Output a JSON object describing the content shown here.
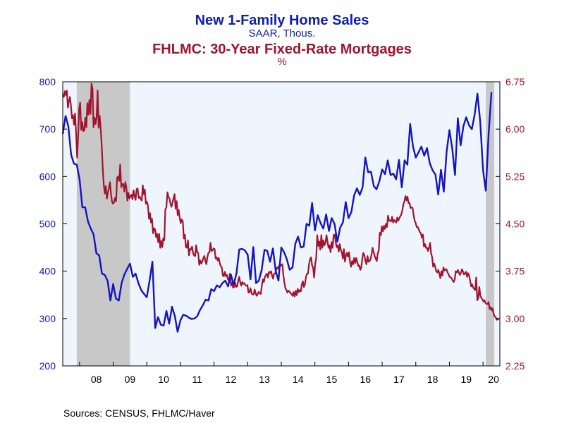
{
  "source": "Sources:  CENSUS, FHLMC/Haver",
  "colors": {
    "home_sales": "#1414c0",
    "mortgage": "#a3132e",
    "plot_bg": "#eef5fd",
    "recession": "#c8c8c8"
  },
  "chart_data": {
    "type": "line",
    "title": "New 1-Family Home Sales",
    "subtitle": "SAAR, Thous.",
    "title2": "FHLMC: 30-Year Fixed-Rate Mortgages",
    "subtitle2": "%",
    "x_tick_labels": [
      "08",
      "09",
      "10",
      "11",
      "12",
      "13",
      "14",
      "15",
      "16",
      "17",
      "18",
      "19",
      "20"
    ],
    "x_range": [
      "2007-07",
      "2020-07"
    ],
    "left_axis": {
      "range": [
        200,
        800
      ],
      "ticks": [
        200,
        300,
        400,
        500,
        600,
        700,
        800
      ],
      "tick_labels": [
        "200",
        "300",
        "400",
        "500",
        "600",
        "700",
        "800"
      ]
    },
    "right_axis": {
      "range": [
        2.25,
        6.75
      ],
      "ticks": [
        2.25,
        3.0,
        3.75,
        4.5,
        5.25,
        6.0,
        6.75
      ],
      "tick_labels": [
        "2.25",
        "3.00",
        "3.75",
        "4.50",
        "5.25",
        "6.00",
        "6.75"
      ]
    },
    "recessions": [
      {
        "start": "2007-12",
        "end": "2009-06"
      },
      {
        "start": "2020-02",
        "end": "2020-04"
      }
    ],
    "grid": false,
    "series": [
      {
        "name": "New 1-Family Home Sales",
        "axis": "left",
        "frequency": "monthly",
        "start": "2007-07",
        "values": [
          690,
          728,
          706,
          646,
          627,
          625,
          595,
          535,
          535,
          505,
          490,
          478,
          438,
          433,
          395,
          392,
          380,
          338,
          373,
          342,
          338,
          375,
          393,
          405,
          416,
          388,
          395,
          375,
          360,
          352,
          345,
          380,
          420,
          280,
          303,
          287,
          285,
          316,
          289,
          325,
          305,
          272,
          296,
          308,
          306,
          302,
          299,
          300,
          305,
          318,
          328,
          340,
          338,
          362,
          358,
          370,
          366,
          375,
          380,
          368,
          393,
          372,
          395,
          446,
          447,
          444,
          435,
          383,
          451,
          375,
          380,
          403,
          445,
          443,
          420,
          448,
          400,
          380,
          450,
          440,
          425,
          403,
          408,
          458,
          473,
          450,
          452,
          500,
          496,
          544,
          486,
          518,
          502,
          490,
          520,
          485,
          512,
          500,
          462,
          492,
          503,
          546,
          512,
          525,
          560,
          575,
          561,
          577,
          640,
          609,
          610,
          580,
          573,
          590,
          615,
          605,
          634,
          603,
          606,
          594,
          635,
          577,
          634,
          625,
          711,
          663,
          640,
          651,
          663,
          644,
          660,
          628,
          613,
          604,
          562,
          614,
          568,
          652,
          698,
          660,
          603,
          723,
          666,
          706,
          725,
          708,
          700,
          730,
          775,
          715,
          613,
          570,
          690,
          778
        ]
      },
      {
        "name": "FHLMC: 30-Year Fixed-Rate Mortgages",
        "axis": "right",
        "frequency": "weekly",
        "start": "2007-07",
        "values": [
          6.55,
          6.51,
          6.6,
          6.54,
          6.61,
          6.34,
          6.44,
          6.51,
          6.37,
          6.17,
          6.22,
          6.07,
          6.25,
          5.94,
          5.55,
          5.86,
          6.33,
          6.42,
          5.99,
          6.11,
          5.97,
          5.98,
          6.18,
          6.03,
          6.41,
          6.23,
          6.46,
          6.24,
          6.72,
          6.64,
          6.03,
          6.18,
          6.08,
          6.19,
          6.61,
          6.02,
          6.21,
          6.0,
          5.73,
          5.37,
          5.12,
          4.98,
          5.1,
          4.9,
          4.99,
          5.07,
          5.16,
          4.98,
          4.85,
          4.82,
          4.84,
          4.91,
          4.86,
          5.23,
          5.25,
          5.18,
          5.44,
          5.08,
          5.13,
          5.13,
          5.01,
          5.16,
          5.08,
          4.87,
          4.99,
          4.9,
          4.94,
          4.96,
          4.89,
          5.03,
          4.94,
          4.88,
          5.05,
          5.06,
          4.91,
          4.93,
          4.89,
          4.87,
          5.11,
          4.97,
          5.04,
          4.82,
          4.85,
          4.79,
          4.58,
          4.67,
          4.52,
          4.58,
          4.35,
          4.43,
          4.41,
          4.29,
          4.34,
          4.21,
          4.34,
          4.12,
          4.23,
          4.13,
          4.27,
          4.24,
          4.73,
          4.76,
          5.0,
          4.93,
          4.9,
          4.82,
          4.77,
          4.84,
          4.91,
          4.97,
          4.74,
          4.86,
          4.64,
          4.72,
          4.59,
          4.51,
          4.57,
          4.54,
          4.27,
          4.33,
          4.13,
          4.12,
          4.24,
          4.0,
          4.1,
          4.09,
          4.14,
          4.04,
          4.0,
          3.99,
          4.16,
          4.05,
          4.04,
          3.85,
          3.92,
          3.87,
          3.9,
          3.96,
          3.99,
          3.91,
          3.86,
          3.98,
          4.04,
          4.05,
          4.2,
          4.07,
          4.08,
          4.11,
          4.1,
          3.95,
          3.97,
          3.92,
          3.96,
          3.88,
          3.83,
          3.81,
          3.68,
          3.67,
          3.74,
          3.67,
          3.69,
          3.62,
          3.6,
          3.71,
          3.52,
          3.57,
          3.49,
          3.5,
          3.57,
          3.5,
          3.51,
          3.6,
          3.66,
          3.57,
          3.52,
          3.58,
          3.55,
          3.56,
          3.53,
          3.52,
          3.53,
          3.41,
          3.42,
          3.48,
          3.4,
          3.38,
          3.38,
          3.46,
          3.4,
          3.36,
          3.39,
          3.42,
          3.4,
          3.39,
          3.52,
          3.62,
          3.58,
          3.66,
          3.69,
          3.71,
          3.65,
          3.74,
          3.72,
          3.75,
          3.68,
          3.63,
          3.71,
          3.71,
          3.77,
          3.81,
          3.79,
          3.84,
          3.83,
          3.85,
          3.86,
          3.69,
          3.57,
          3.48,
          3.45,
          3.41,
          3.44,
          3.43,
          3.4,
          3.39,
          3.36,
          3.42,
          3.35,
          3.44,
          3.37,
          3.47,
          3.42,
          3.45,
          3.43,
          3.54,
          3.59,
          3.5,
          3.54,
          3.65,
          3.71,
          3.71,
          3.86,
          3.94,
          3.97,
          3.84,
          3.81,
          3.65,
          3.86,
          3.96,
          4.32,
          4.15,
          4.22,
          4.09,
          4.32,
          4.12,
          4.24,
          4.16,
          4.2,
          4.32,
          4.22,
          4.12,
          4.16,
          4.05,
          4.21,
          4.12,
          4.32,
          4.33,
          4.21,
          4.13,
          4.16,
          4.06,
          4.18,
          4.09,
          4.05,
          3.95,
          4.1,
          3.9,
          4.0,
          4.04,
          3.98,
          4.05,
          3.89,
          3.82,
          3.91,
          3.86,
          3.96,
          3.88,
          3.96,
          3.9,
          3.83,
          3.84,
          3.77,
          3.81,
          3.96,
          4.04,
          4.0,
          3.91,
          3.86,
          3.99,
          3.9,
          3.91,
          3.94,
          4.02,
          4.12,
          4.05,
          3.99,
          3.95,
          3.91,
          4.03,
          4.08,
          4.36,
          4.32,
          4.46,
          4.38,
          4.47,
          4.42,
          4.5,
          4.45,
          4.63,
          4.55,
          4.55,
          4.54,
          4.61,
          4.52,
          4.56,
          4.54,
          4.52,
          4.6,
          4.55,
          4.59,
          4.62,
          4.65,
          4.72,
          4.81,
          4.86,
          4.94,
          4.87,
          4.93,
          4.83,
          4.83,
          4.75,
          4.76,
          4.75,
          4.63,
          4.55,
          4.51,
          4.45,
          4.45,
          4.41,
          4.37,
          4.35,
          4.28,
          4.33,
          4.14,
          4.18,
          4.12,
          4.12,
          4.07,
          4.12,
          4.2,
          4.03,
          3.97,
          3.82,
          3.87,
          3.82,
          3.75,
          3.73,
          3.77,
          3.71,
          3.64,
          3.75,
          3.68,
          3.81,
          3.76,
          3.78,
          3.78,
          3.73,
          3.7,
          3.66,
          3.65,
          3.64,
          3.6,
          3.58,
          3.62,
          3.75,
          3.73,
          3.77,
          3.73,
          3.69,
          3.72,
          3.78,
          3.75,
          3.7,
          3.71,
          3.74,
          3.66,
          3.72,
          3.68,
          3.6,
          3.51,
          3.54,
          3.49,
          3.47,
          3.45,
          3.65,
          3.29,
          3.33,
          3.5,
          3.36,
          3.33,
          3.3,
          3.27,
          3.29,
          3.25,
          3.23,
          3.23,
          3.26,
          3.15,
          3.18,
          3.13,
          3.16,
          3.07,
          3.03,
          3.02,
          2.98,
          2.99,
          2.98
        ]
      }
    ]
  }
}
